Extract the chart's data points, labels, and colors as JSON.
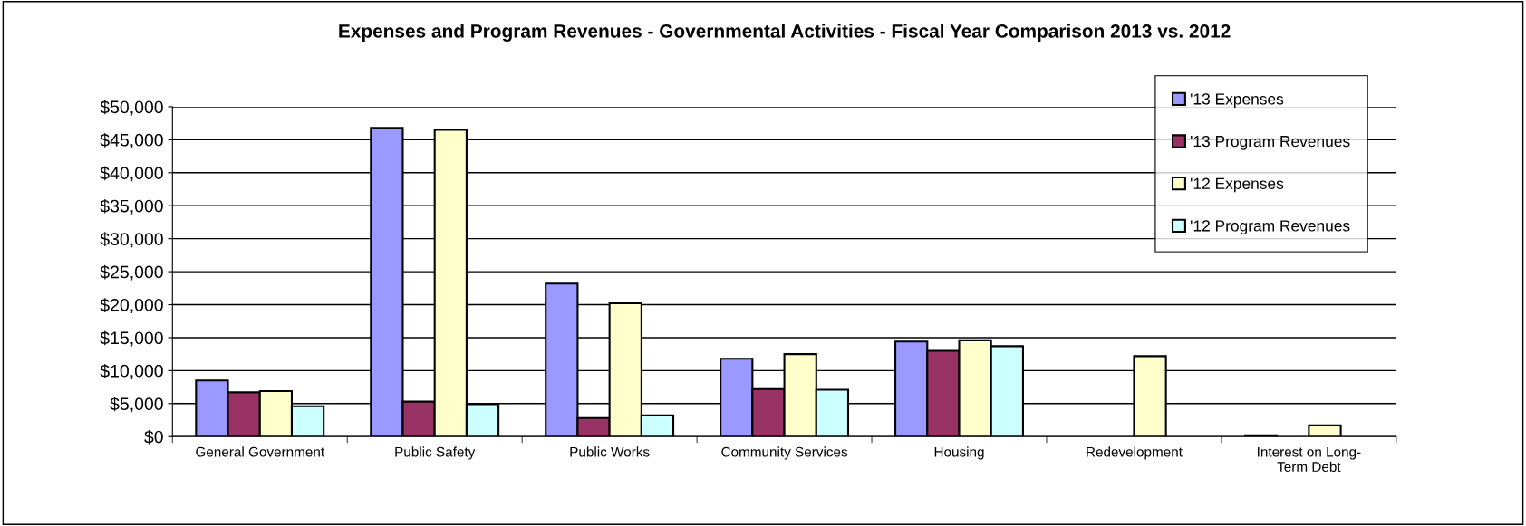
{
  "chart_data": {
    "type": "bar",
    "title": "Expenses and Program Revenues - Governmental Activities - Fiscal Year Comparison 2013 vs. 2012",
    "categories": [
      "General Government",
      "Public Safety",
      "Public Works",
      "Community Services",
      "Housing",
      "Redevelopment",
      "Interest on Long-\nTerm Debt"
    ],
    "series": [
      {
        "name": "'13 Expenses",
        "color": "#9999ff",
        "values": [
          8500,
          46800,
          23200,
          11800,
          14400,
          null,
          200
        ]
      },
      {
        "name": "'13 Program Revenues",
        "color": "#993366",
        "values": [
          6700,
          5300,
          2800,
          7200,
          13000,
          null,
          null
        ]
      },
      {
        "name": "'12 Expenses",
        "color": "#ffffcc",
        "values": [
          6900,
          46500,
          20200,
          12500,
          14600,
          12200,
          1700
        ]
      },
      {
        "name": "'12 Program Revenues",
        "color": "#ccffff",
        "values": [
          4600,
          4900,
          3200,
          7100,
          13700,
          null,
          null
        ]
      }
    ],
    "ylim": [
      0,
      50000
    ],
    "yticks": [
      {
        "value": 0,
        "label": "$0"
      },
      {
        "value": 5000,
        "label": "$5,000"
      },
      {
        "value": 10000,
        "label": "$10,000"
      },
      {
        "value": 15000,
        "label": "$15,000"
      },
      {
        "value": 20000,
        "label": "$20,000"
      },
      {
        "value": 25000,
        "label": "$25,000"
      },
      {
        "value": 30000,
        "label": "$30,000"
      },
      {
        "value": 35000,
        "label": "$35,000"
      },
      {
        "value": 40000,
        "label": "$40,000"
      },
      {
        "value": 45000,
        "label": "$45,000"
      },
      {
        "value": 50000,
        "label": "$50,000"
      }
    ],
    "grid": "y",
    "legend": "top right"
  }
}
